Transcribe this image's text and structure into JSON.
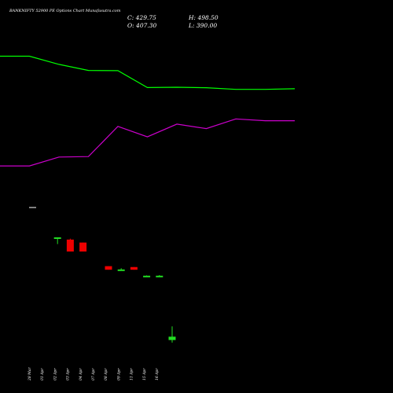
{
  "chart_data": {
    "type": "candlestick",
    "title": "BANKNIFTY 52900  PE Options  Chart Munafasutra.com",
    "ohlc_readout": {
      "close": "C: 429.75",
      "open": "O: 407.30",
      "high": "H: 498.50",
      "low": "L: 390.00"
    },
    "categories": [
      "28 Mar",
      "01 Apr",
      "02 Apr",
      "03 Apr",
      "04 Apr",
      "07 Apr",
      "08 Apr",
      "09 Apr",
      "11 Apr",
      "15 Apr",
      "16 Apr"
    ],
    "candles": [
      {
        "open": null,
        "high": null,
        "low": null,
        "close": null
      },
      {
        "open": 1090,
        "high": 1095,
        "low": 1050,
        "close": 1095
      },
      {
        "open": 1080,
        "high": 1086,
        "low": 1000,
        "close": 1000
      },
      {
        "open": 1060,
        "high": 1060,
        "low": 1000,
        "close": 1000
      },
      {
        "open": null,
        "high": null,
        "low": null,
        "close": null
      },
      {
        "open": 902,
        "high": 902,
        "low": 878,
        "close": 878
      },
      {
        "open": 880,
        "high": 888,
        "low": 874,
        "close": 880
      },
      {
        "open": 896,
        "high": 896,
        "low": 878,
        "close": 878
      },
      {
        "open": 838,
        "high": 840,
        "low": 835,
        "close": 838
      },
      {
        "open": 838,
        "high": 842,
        "low": 834,
        "close": 838
      },
      {
        "open": 407.3,
        "high": 498.5,
        "low": 390.0,
        "close": 429.75
      }
    ],
    "series": [
      {
        "color": "#00ff00",
        "values": [
          2150,
          2150,
          2095,
          2055,
          2053,
          1940,
          1942,
          1939,
          1928,
          1928,
          1932
        ]
      },
      {
        "color": "#cc00cc",
        "values": [
          1415,
          1415,
          1475,
          1478,
          1680,
          1610,
          1695,
          1665,
          1730,
          1718,
          1718
        ]
      }
    ],
    "colors": {
      "up": "#22dd22",
      "down": "#ee0000",
      "background": "#000000",
      "text": "#ffffff"
    }
  }
}
